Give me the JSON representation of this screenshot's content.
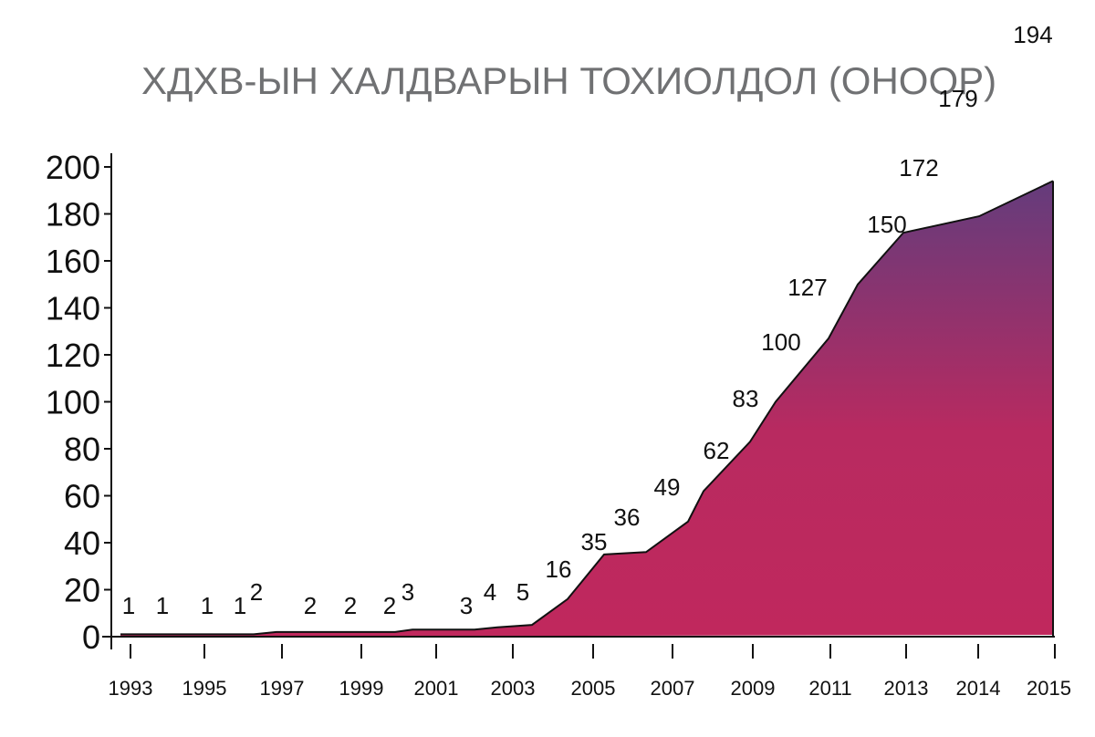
{
  "chart_data": {
    "type": "area",
    "title": "ХДХВ-ЫН ХАЛДВАРЫН ТОХИОЛДОЛ (ОНООР)",
    "xlabel": "",
    "ylabel": "",
    "ylim": [
      0,
      200
    ],
    "yticks": [
      "0",
      "20",
      "40",
      "60",
      "80",
      "100",
      "120",
      "140",
      "160",
      "180",
      "200"
    ],
    "xticks": [
      "1993",
      "1995",
      "1997",
      "1999",
      "2001",
      "2003",
      "2005",
      "2007",
      "2009",
      "2011",
      "2013",
      "2014",
      "2015"
    ],
    "grid": false,
    "legend": "none",
    "colors": {
      "fill_bottom": "#c0285d",
      "fill_top": "#643c7c",
      "line": "#111111"
    },
    "points": [
      {
        "label": "1",
        "value": 1
      },
      {
        "label": "1",
        "value": 1
      },
      {
        "label": "1",
        "value": 1
      },
      {
        "label": "1",
        "value": 1
      },
      {
        "label": "2",
        "value": 2
      },
      {
        "label": "2",
        "value": 2
      },
      {
        "label": "2",
        "value": 2
      },
      {
        "label": "2",
        "value": 2
      },
      {
        "label": "3",
        "value": 3
      },
      {
        "label": "3",
        "value": 3
      },
      {
        "label": "4",
        "value": 4
      },
      {
        "label": "5",
        "value": 5
      },
      {
        "label": "16",
        "value": 16
      },
      {
        "label": "35",
        "value": 35
      },
      {
        "label": "36",
        "value": 36
      },
      {
        "label": "49",
        "value": 49
      },
      {
        "label": "62",
        "value": 62
      },
      {
        "label": "83",
        "value": 83
      },
      {
        "label": "100",
        "value": 100
      },
      {
        "label": "127",
        "value": 127
      },
      {
        "label": "150",
        "value": 150
      },
      {
        "label": "172",
        "value": 172
      },
      {
        "label": "179",
        "value": 179
      },
      {
        "label": "194",
        "value": 194
      }
    ]
  }
}
